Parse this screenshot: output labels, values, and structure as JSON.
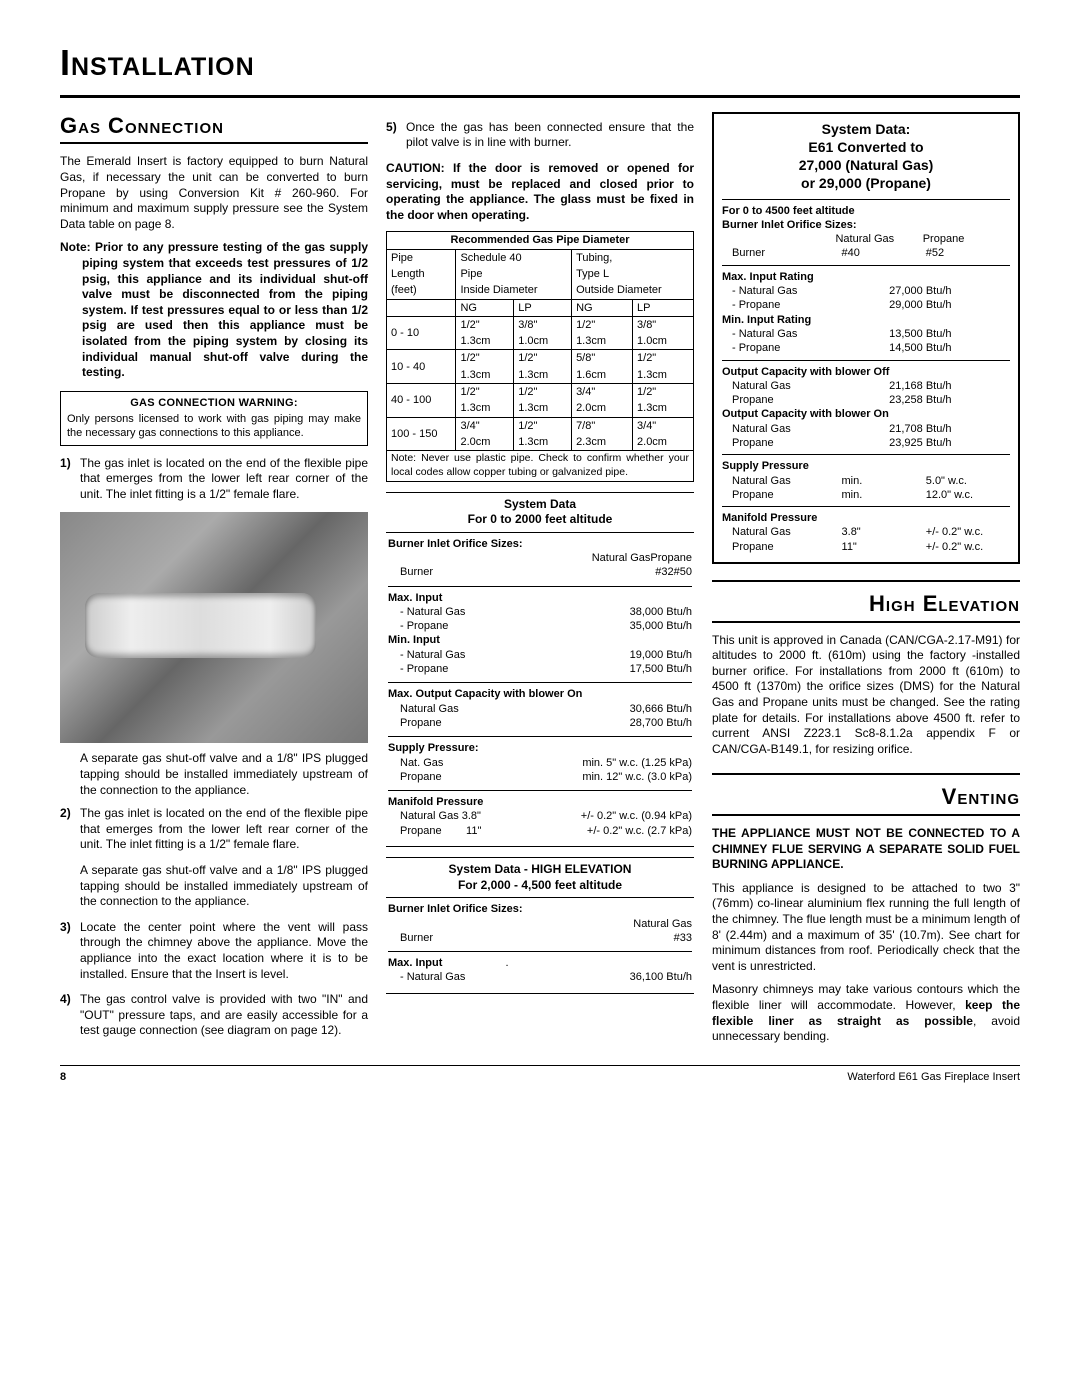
{
  "page": {
    "title": "Installation",
    "number": "8",
    "footer_right": "Waterford E61 Gas Fireplace Insert"
  },
  "col1": {
    "h_gas_conn": "Gas Connection",
    "p_intro": "The Emerald Insert is factory equipped to burn Natural Gas, if necessary the unit can be converted to burn Propane by using Conversion Kit # 260-960. For minimum and maximum supply pressure see the System Data table on page 8.",
    "p_note": "Note: Prior to any pressure testing of the gas supply piping system that exceeds test pressures of 1/2 psig, this appliance and its individual shut-off valve must be disconnected from the piping system. If test pressures equal to or less than 1/2 psig are used then this appliance must be isolated from the piping system by closing its individual manual shut-off valve during the testing.",
    "warn_title": "GAS CONNECTION WARNING:",
    "warn_body": "Only persons licensed to work with gas piping may make the necessary gas connections to this appliance.",
    "li1": "The gas inlet is located on the end of the flexible pipe that emerges from the lower left rear corner of the unit. The inlet fitting is a 1/2\" female flare.",
    "photo_cap": "A separate gas shut-off valve and a 1/8\" IPS plugged tapping should be installed immediately upstream of the connection to the appliance.",
    "li2": "The gas inlet is located on the end of the flexible pipe that emerges from the lower left rear corner of the unit. The inlet fitting is a 1/2\" female flare.",
    "li2b": "A separate gas shut-off valve and a 1/8\" IPS plugged tapping should be installed immediately upstream of the connection to the appliance.",
    "li3": "Locate the center point where the vent will pass through the chimney above the appliance. Move the appliance into the exact location where it is to be installed. Ensure that the Insert is level.",
    "li4": "The gas control valve is provided with two \"IN\" and \"OUT\" pressure taps, and are easily accessible for a test gauge connection (see diagram on page 12)."
  },
  "col2": {
    "li5": "Once the gas has been connected ensure that the pilot valve is in line with burner.",
    "caution": "CAUTION: If the door is removed or opened for servicing, must be replaced and closed prior to operating the appliance. The glass must be fixed in the door when operating.",
    "pipe": {
      "title": "Recommended Gas Pipe Diameter",
      "h1a": "Pipe",
      "h1b": "Schedule 40",
      "h1c": "Tubing,",
      "h2a": "Length",
      "h2b": "Pipe",
      "h2c": "Type L",
      "h3a": "(feet)",
      "h3b": "Inside Diameter",
      "h3c": "Outside Diameter",
      "sub": {
        "ng": "NG",
        "lp": "LP"
      },
      "rows": [
        {
          "len": "0 - 10",
          "a": "1/2\"",
          "b": "3/8\"",
          "c": "1/2\"",
          "d": "3/8\"",
          "a2": "1.3cm",
          "b2": "1.0cm",
          "c2": "1.3cm",
          "d2": "1.0cm"
        },
        {
          "len": "10 - 40",
          "a": "1/2\"",
          "b": "1/2\"",
          "c": "5/8\"",
          "d": "1/2\"",
          "a2": "1.3cm",
          "b2": "1.3cm",
          "c2": "1.6cm",
          "d2": "1.3cm"
        },
        {
          "len": "40 - 100",
          "a": "1/2\"",
          "b": "1/2\"",
          "c": "3/4\"",
          "d": "1/2\"",
          "a2": "1.3cm",
          "b2": "1.3cm",
          "c2": "2.0cm",
          "d2": "1.3cm"
        },
        {
          "len": "100 - 150",
          "a": "3/4\"",
          "b": "1/2\"",
          "c": "7/8\"",
          "d": "3/4\"",
          "a2": "2.0cm",
          "b2": "1.3cm",
          "c2": "2.3cm",
          "d2": "2.0cm"
        }
      ],
      "note": "Note: Never use plastic pipe. Check to confirm whether your local codes allow copper tubing or galvanized pipe."
    },
    "sd": {
      "title1": "System Data",
      "title2": "For 0 to 2000 feet altitude",
      "bios": "Burner Inlet Orifice Sizes:",
      "h_ng": "Natural Gas",
      "h_pr": "Propane",
      "burner": "Burner",
      "v_ng": "#32",
      "v_pr": "#50",
      "max": "Max. Input",
      "max_ng": "- Natural Gas",
      "max_ng_v": "38,000 Btu/h",
      "max_pr": "- Propane",
      "max_pr_v": "35,000 Btu/h",
      "min": "Min. Input",
      "min_ng": "- Natural Gas",
      "min_ng_v": "19,000 Btu/h",
      "min_pr": "- Propane",
      "min_pr_v": "17,500 Btu/h",
      "out": "Max. Output Capacity with blower On",
      "out_ng": "Natural Gas",
      "out_ng_v": "30,666 Btu/h",
      "out_pr": "Propane",
      "out_pr_v": "28,700 Btu/h",
      "sup": "Supply Pressure:",
      "sup_ng": "Nat. Gas",
      "sup_ng_v": "min. 5\" w.c. (1.25 kPa)",
      "sup_pr": "Propane",
      "sup_pr_v": "min. 12\" w.c. (3.0 kPa)",
      "man": "Manifold Pressure",
      "man_ng": "Natural Gas 3.8\"",
      "man_ng_v": "+/- 0.2\" w.c. (0.94 kPa)",
      "man_pr": "Propane        11\"",
      "man_pr_v": "+/- 0.2\" w.c. (2.7 kPa)"
    },
    "sdhe": {
      "title1": "System Data - HIGH ELEVATION",
      "title2": "For 2,000 - 4,500 feet altitude",
      "bios": "Burner Inlet Orifice Sizes:",
      "h": "Natural Gas",
      "b": "Burner",
      "v": "#33",
      "max": "Max. Input",
      "dot": ".",
      "ng": "- Natural Gas",
      "ng_v": "36,100 Btu/h"
    }
  },
  "col3": {
    "box": {
      "t1": "System Data:",
      "t2": "E61 Converted to",
      "t3": "27,000 (Natural Gas)",
      "t4": "or 29,000 (Propane)",
      "alt": "For 0 to 4500 feet altitude",
      "bios": "Burner Inlet Orifice Sizes:",
      "h_ng": "Natural Gas",
      "h_pr": "Propane",
      "b": "Burner",
      "bng": "#40",
      "bpr": "#52",
      "maxir": "Max. Input Rating",
      "maxir_ng": "- Natural Gas",
      "maxir_ng_v": "27,000 Btu/h",
      "maxir_pr": "- Propane",
      "maxir_pr_v": "29,000 Btu/h",
      "minir": "Min. Input Rating",
      "minir_ng": "- Natural Gas",
      "minir_ng_v": "13,500 Btu/h",
      "minir_pr": "- Propane",
      "minir_pr_v": "14,500 Btu/h",
      "ocoff": "Output Capacity with blower Off",
      "ocoff_ng": "Natural Gas",
      "ocoff_ng_v": "21,168 Btu/h",
      "ocoff_pr": "Propane",
      "ocoff_pr_v": "23,258 Btu/h",
      "ocon": "Output Capacity with blower On",
      "ocon_ng": "Natural Gas",
      "ocon_ng_v": "21,708 Btu/h",
      "ocon_pr": "Propane",
      "ocon_pr_v": "23,925 Btu/h",
      "sup": "Supply Pressure",
      "sup_ng": "Natural Gas",
      "sup_ng_m": "min.",
      "sup_ng_v": "5.0\" w.c.",
      "sup_pr": "Propane",
      "sup_pr_m": "min.",
      "sup_pr_v": "12.0\" w.c.",
      "man": "Manifold Pressure",
      "man_ng": "Natural Gas",
      "man_ng_m": "3.8\"",
      "man_ng_v": "+/- 0.2\" w.c.",
      "man_pr": "Propane",
      "man_pr_m": "11\"",
      "man_pr_v": "+/- 0.2\" w.c."
    },
    "h_he": "High Elevation",
    "p_he": "This unit is approved in Canada (CAN/CGA-2.17-M91) for altitudes to 2000 ft. (610m) using the factory -installed burner orifice. For installations from 2000 ft (610m) to 4500 ft (1370m) the orifice sizes (DMS) for the Natural Gas and Propane units must be changed. See the rating plate for details. For installations above 4500 ft. refer to current ANSI Z223.1 Sc8-8.1.2a appendix F or CAN/CGA-B149.1, for resizing orifice.",
    "h_vent": "Venting",
    "p_vent_warn": "THE APPLIANCE MUST NOT BE CONNECTED TO A CHIMNEY FLUE SERVING A SEPARATE SOLID FUEL BURNING APPLIANCE.",
    "p_vent1": "This appliance is designed to be attached to two 3\" (76mm) co-linear aluminium flex running the full length of the chimney. The flue length must be a minimum length of 8' (2.44m) and a maximum of 35' (10.7m). See chart for minimum distances from roof. Periodically check that the vent is unrestricted.",
    "p_vent2a": "Masonry chimneys may take various contours which the flexible liner will accommodate. However, ",
    "p_vent2b": "keep the flexible liner as straight as possible",
    "p_vent2c": ", avoid unnecessary bending."
  }
}
